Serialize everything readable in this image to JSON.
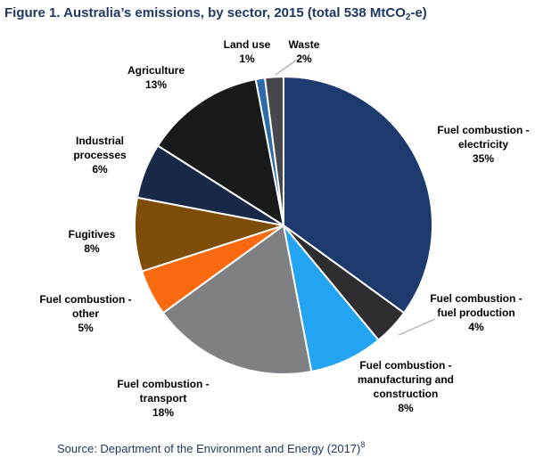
{
  "title": {
    "prefix": "Figure 1. Australia’s emissions, by sector, 2015 (total 538 MtCO",
    "subscript": "2",
    "suffix": "-e)",
    "color": "#1F3864"
  },
  "source": {
    "text": "Source: Department of the Environment and Energy (2017)",
    "superscript": "8"
  },
  "chart_data": {
    "type": "pie",
    "title": "Figure 1. Australia's emissions, by sector, 2015 (total 538 MtCO2-e)",
    "total_value": 538,
    "total_units": "MtCO2-e",
    "year": 2015,
    "start_angle_deg": 0,
    "direction": "clockwise",
    "slice_border_color": "#FFFFFF",
    "leader_line_color": "#A6A6A6",
    "slices": [
      {
        "id": "electricity",
        "label": "Fuel combustion - electricity",
        "label_lines": [
          "Fuel combustion -",
          "electricity"
        ],
        "pct_label": "35%",
        "value": 35,
        "color": "#1C3A6E"
      },
      {
        "id": "fuel-production",
        "label": "Fuel combustion - fuel production",
        "label_lines": [
          "Fuel combustion -",
          "fuel production"
        ],
        "pct_label": "4%",
        "value": 4,
        "color": "#2E2E30"
      },
      {
        "id": "manufacturing",
        "label": "Fuel combustion - manufacturing and construction",
        "label_lines": [
          "Fuel combustion -",
          "manufacturing and",
          "construction"
        ],
        "pct_label": "8%",
        "value": 8,
        "color": "#22A4F2"
      },
      {
        "id": "transport",
        "label": "Fuel combustion - transport",
        "label_lines": [
          "Fuel combustion -",
          "transport"
        ],
        "pct_label": "18%",
        "value": 18,
        "color": "#7F8083"
      },
      {
        "id": "other",
        "label": "Fuel combustion - other",
        "label_lines": [
          "Fuel combustion -",
          "other"
        ],
        "pct_label": "5%",
        "value": 5,
        "color": "#F96A10"
      },
      {
        "id": "fugitives",
        "label": "Fugitives",
        "label_lines": [
          "Fugitives"
        ],
        "pct_label": "8%",
        "value": 8,
        "color": "#7E4D08"
      },
      {
        "id": "industrial",
        "label": "Industrial processes",
        "label_lines": [
          "Industrial",
          "processes"
        ],
        "pct_label": "6%",
        "value": 6,
        "color": "#172947"
      },
      {
        "id": "agriculture",
        "label": "Agriculture",
        "label_lines": [
          "Agriculture"
        ],
        "pct_label": "13%",
        "value": 13,
        "color": "#18191B"
      },
      {
        "id": "land-use",
        "label": "Land use",
        "label_lines": [
          "Land use"
        ],
        "pct_label": "1%",
        "value": 1,
        "color": "#2B6CA8"
      },
      {
        "id": "waste",
        "label": "Waste",
        "label_lines": [
          "Waste"
        ],
        "pct_label": "2%",
        "value": 2,
        "color": "#47484B"
      }
    ]
  }
}
